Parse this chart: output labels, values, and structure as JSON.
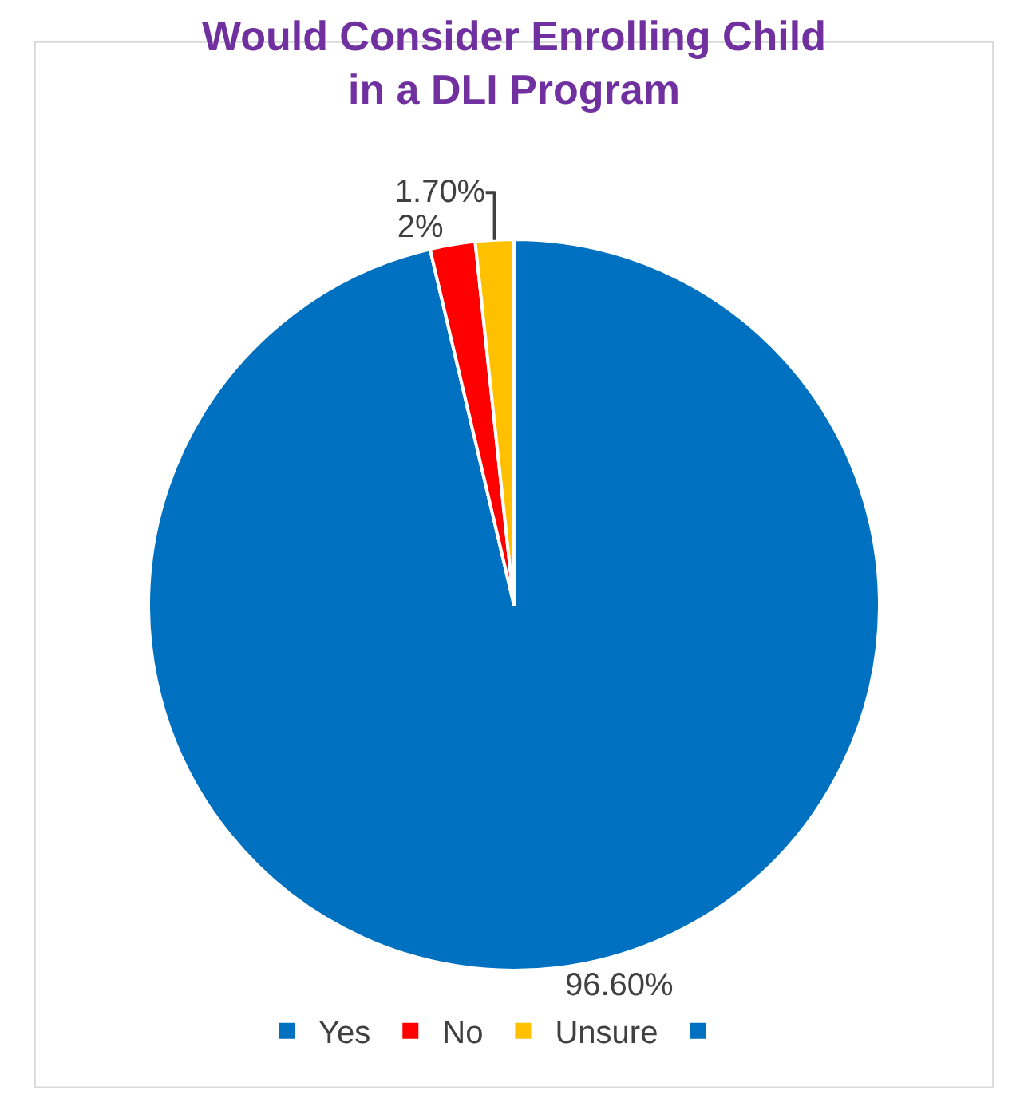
{
  "chart_data": {
    "type": "pie",
    "title": "Would Consider Enrolling Child in a DLI Program",
    "categories": [
      "Yes",
      "No",
      "Unsure",
      null
    ],
    "values": [
      96.6,
      2,
      1.7,
      0
    ],
    "value_labels": [
      "96.60%",
      "2%",
      "1.70%",
      null
    ],
    "colors": [
      "#0070c0",
      "#ff0000",
      "#ffc000",
      "#0070c0"
    ],
    "legend": "bottom"
  }
}
